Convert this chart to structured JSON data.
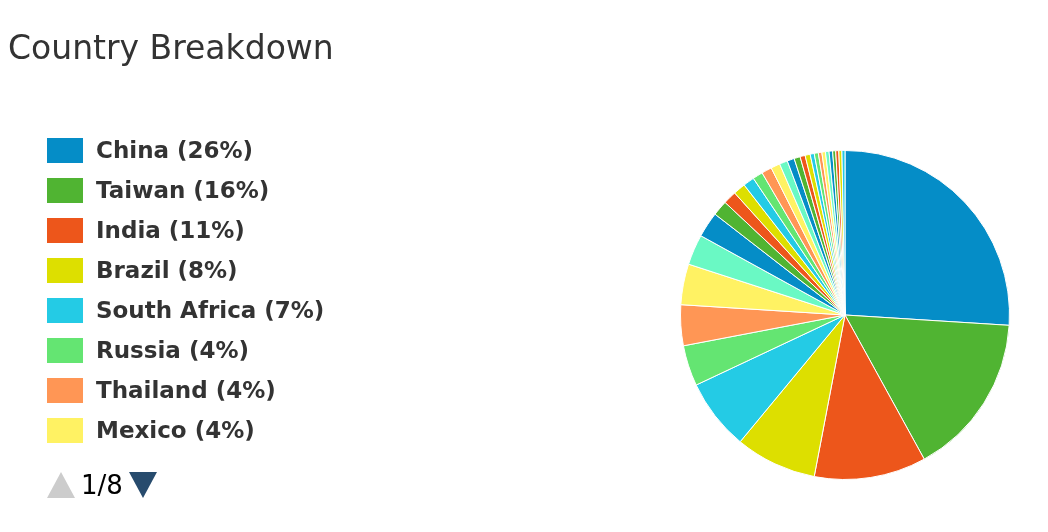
{
  "chart_data": {
    "type": "pie",
    "title": "Country Breakdown",
    "legend": "left",
    "annotations": [
      "1/8"
    ],
    "categories": [
      "China (26%)",
      "Taiwan (16%)",
      "India (11%)",
      "Brazil (8%)",
      "South Africa (7%)",
      "Russia (4%)",
      "Thailand (4%)",
      "Mexico (4%)",
      null,
      null,
      null,
      null,
      null,
      null,
      null,
      null,
      null,
      null,
      null,
      null,
      null,
      null,
      null,
      null,
      null,
      null,
      null,
      null,
      null,
      null,
      null,
      null
    ],
    "values": [
      26,
      16,
      11,
      8,
      7,
      4,
      4,
      4,
      3,
      2.5,
      1.5,
      1.3,
      1.2,
      1.1,
      1,
      1,
      0.9,
      0.8,
      0.7,
      0.6,
      0.5,
      0.5,
      0.4,
      0.4,
      0.35,
      0.35,
      0.35,
      0.35,
      0.3,
      0.3,
      0.3,
      0.3
    ],
    "colors": [
      "#058dc7",
      "#50b432",
      "#ed561b",
      "#dddf00",
      "#24cbe5",
      "#64e572",
      "#ff9655",
      "#fff263",
      "#6af9c4",
      "#058dc7",
      "#50b432",
      "#ed561b",
      "#dddf00",
      "#24cbe5",
      "#64e572",
      "#ff9655",
      "#fff263",
      "#6af9c4",
      "#058dc7",
      "#50b432",
      "#ed561b",
      "#dddf00",
      "#24cbe5",
      "#64e572",
      "#ff9655",
      "#fff263",
      "#6af9c4",
      "#058dc7",
      "#50b432",
      "#ed561b",
      "#dddf00",
      "#24cbe5"
    ]
  }
}
